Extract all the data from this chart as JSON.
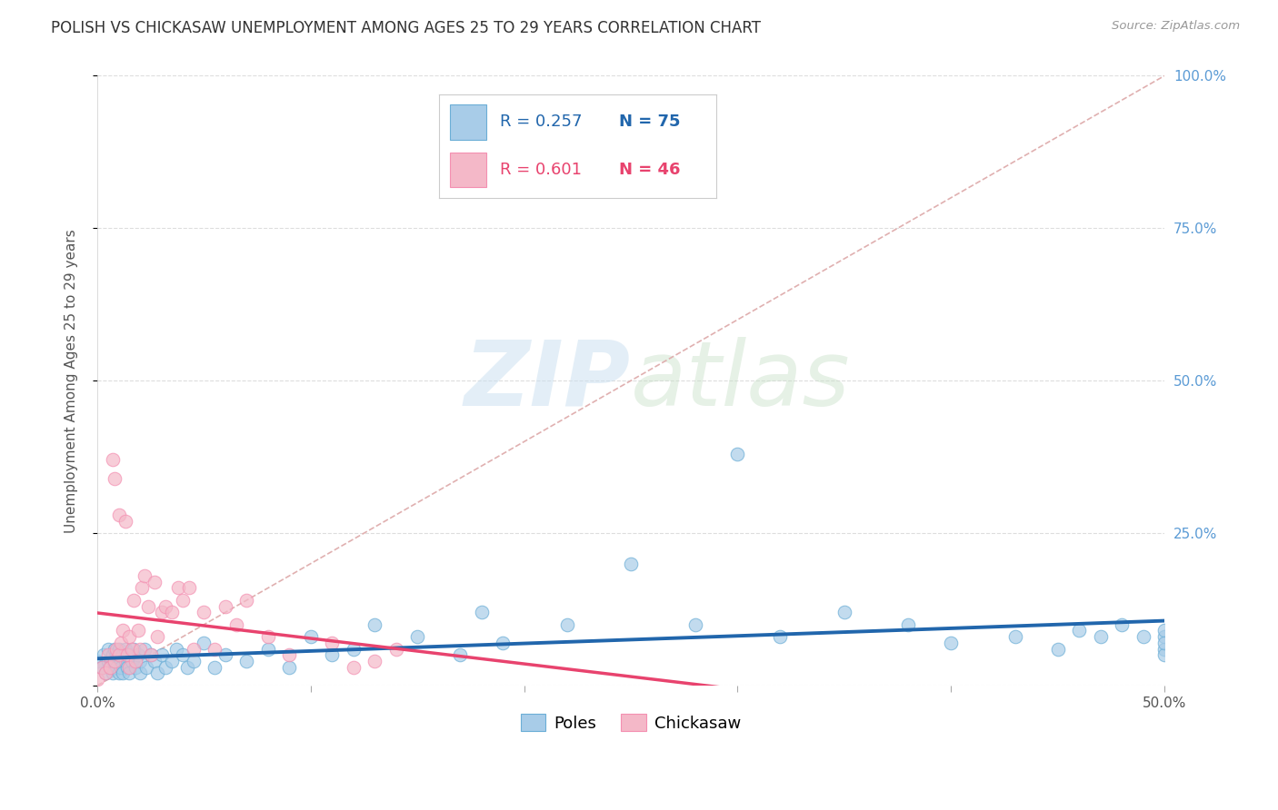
{
  "title": "POLISH VS CHICKASAW UNEMPLOYMENT AMONG AGES 25 TO 29 YEARS CORRELATION CHART",
  "source": "Source: ZipAtlas.com",
  "ylabel": "Unemployment Among Ages 25 to 29 years",
  "xlim": [
    0.0,
    0.5
  ],
  "ylim": [
    0.0,
    1.0
  ],
  "xticks": [
    0.0,
    0.1,
    0.2,
    0.3,
    0.4,
    0.5
  ],
  "yticks": [
    0.0,
    0.25,
    0.5,
    0.75,
    1.0
  ],
  "xticklabels": [
    "0.0%",
    "",
    "",
    "",
    "",
    "50.0%"
  ],
  "yticklabels_right": [
    "",
    "25.0%",
    "50.0%",
    "75.0%",
    "100.0%"
  ],
  "poles_R": 0.257,
  "poles_N": 75,
  "chickasaw_R": 0.601,
  "chickasaw_N": 46,
  "poles_color": "#a8cce8",
  "chickasaw_color": "#f4b8c8",
  "poles_edge_color": "#6baed6",
  "chickasaw_edge_color": "#f48fb1",
  "poles_line_color": "#2166ac",
  "chickasaw_line_color": "#e8436e",
  "diag_color": "#cccccc",
  "watermark_color": "#d8e8f0",
  "grid_color": "#dddddd",
  "tick_color": "#5b9bd5",
  "ylabel_color": "#555555",
  "title_color": "#333333",
  "source_color": "#999999",
  "background_color": "#ffffff",
  "title_fontsize": 12,
  "axis_label_fontsize": 11,
  "tick_fontsize": 11,
  "legend_fontsize": 13,
  "poles_x": [
    0.0,
    0.002,
    0.003,
    0.004,
    0.005,
    0.005,
    0.006,
    0.007,
    0.007,
    0.008,
    0.008,
    0.009,
    0.009,
    0.01,
    0.01,
    0.011,
    0.011,
    0.012,
    0.012,
    0.013,
    0.013,
    0.014,
    0.015,
    0.015,
    0.016,
    0.017,
    0.018,
    0.019,
    0.02,
    0.02,
    0.022,
    0.023,
    0.025,
    0.027,
    0.028,
    0.03,
    0.032,
    0.035,
    0.037,
    0.04,
    0.042,
    0.045,
    0.05,
    0.055,
    0.06,
    0.07,
    0.08,
    0.09,
    0.1,
    0.11,
    0.12,
    0.13,
    0.15,
    0.17,
    0.18,
    0.19,
    0.22,
    0.25,
    0.28,
    0.3,
    0.32,
    0.35,
    0.38,
    0.4,
    0.43,
    0.45,
    0.46,
    0.47,
    0.48,
    0.49,
    0.5,
    0.5,
    0.5,
    0.5,
    0.5
  ],
  "poles_y": [
    0.04,
    0.03,
    0.05,
    0.02,
    0.04,
    0.06,
    0.03,
    0.05,
    0.02,
    0.04,
    0.06,
    0.03,
    0.05,
    0.02,
    0.06,
    0.04,
    0.03,
    0.05,
    0.02,
    0.04,
    0.06,
    0.03,
    0.05,
    0.02,
    0.04,
    0.06,
    0.03,
    0.05,
    0.02,
    0.04,
    0.06,
    0.03,
    0.05,
    0.04,
    0.02,
    0.05,
    0.03,
    0.04,
    0.06,
    0.05,
    0.03,
    0.04,
    0.07,
    0.03,
    0.05,
    0.04,
    0.06,
    0.03,
    0.08,
    0.05,
    0.06,
    0.1,
    0.08,
    0.05,
    0.12,
    0.07,
    0.1,
    0.2,
    0.1,
    0.38,
    0.08,
    0.12,
    0.1,
    0.07,
    0.08,
    0.06,
    0.09,
    0.08,
    0.1,
    0.08,
    0.06,
    0.08,
    0.05,
    0.09,
    0.07
  ],
  "chickasaw_x": [
    0.0,
    0.002,
    0.004,
    0.005,
    0.006,
    0.007,
    0.008,
    0.008,
    0.009,
    0.01,
    0.01,
    0.011,
    0.012,
    0.013,
    0.014,
    0.015,
    0.015,
    0.016,
    0.017,
    0.018,
    0.019,
    0.02,
    0.021,
    0.022,
    0.024,
    0.025,
    0.027,
    0.028,
    0.03,
    0.032,
    0.035,
    0.038,
    0.04,
    0.043,
    0.045,
    0.05,
    0.055,
    0.06,
    0.065,
    0.07,
    0.08,
    0.09,
    0.11,
    0.12,
    0.13,
    0.14
  ],
  "chickasaw_y": [
    0.01,
    0.03,
    0.02,
    0.05,
    0.03,
    0.37,
    0.34,
    0.04,
    0.06,
    0.28,
    0.05,
    0.07,
    0.09,
    0.27,
    0.05,
    0.03,
    0.08,
    0.06,
    0.14,
    0.04,
    0.09,
    0.06,
    0.16,
    0.18,
    0.13,
    0.05,
    0.17,
    0.08,
    0.12,
    0.13,
    0.12,
    0.16,
    0.14,
    0.16,
    0.06,
    0.12,
    0.06,
    0.13,
    0.1,
    0.14,
    0.08,
    0.05,
    0.07,
    0.03,
    0.04,
    0.06
  ]
}
